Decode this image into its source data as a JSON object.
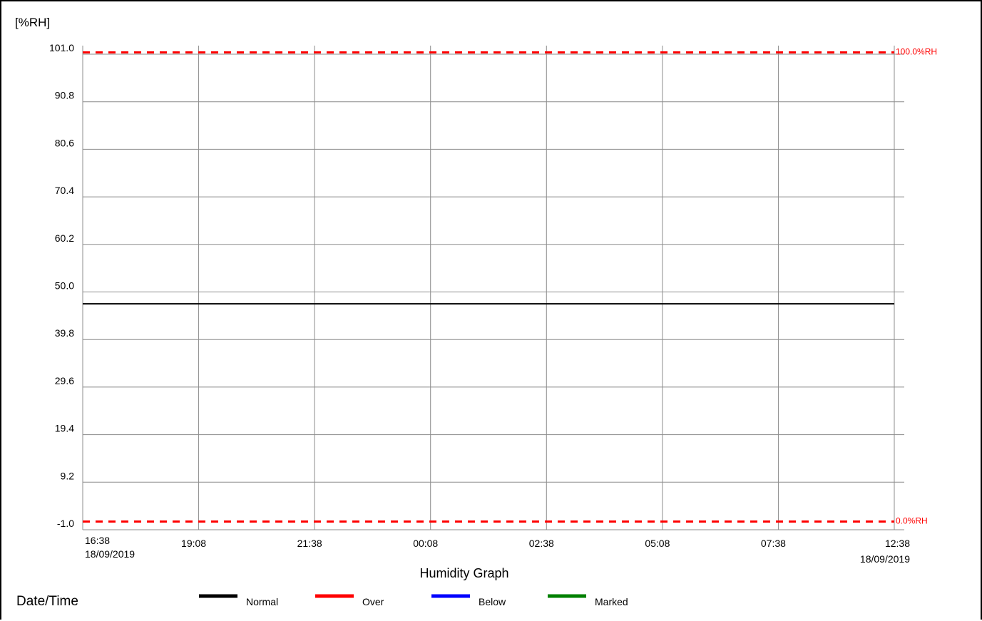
{
  "chart_data": {
    "type": "line",
    "title": "Humidity Graph",
    "ylabel": "[%RH]",
    "xlabel": "Date/Time",
    "ylim": [
      -1.0,
      101.0
    ],
    "y_ticks": [
      "101.0",
      "90.8",
      "80.6",
      "70.4",
      "60.2",
      "50.0",
      "39.8",
      "29.6",
      "19.4",
      "9.2",
      "-1.0"
    ],
    "x_ticks": [
      {
        "time": "16:38",
        "date": "18/09/2019"
      },
      {
        "time": "19:08",
        "date": ""
      },
      {
        "time": "21:38",
        "date": ""
      },
      {
        "time": "00:08",
        "date": ""
      },
      {
        "time": "02:38",
        "date": ""
      },
      {
        "time": "05:08",
        "date": ""
      },
      {
        "time": "07:38",
        "date": ""
      },
      {
        "time": "12:38",
        "date": "18/09/2019"
      }
    ],
    "grid": true,
    "limits": [
      {
        "label": "100.0%RH",
        "value": 100.0,
        "color": "#ff0000",
        "style": "dashed"
      },
      {
        "label": "0.0%RH",
        "value": 0.0,
        "color": "#ff0000",
        "style": "dashed"
      }
    ],
    "series": [
      {
        "name": "Normal",
        "color": "#000000",
        "x": [
          "16:38",
          "12:38"
        ],
        "values": [
          46.7,
          46.7
        ]
      }
    ],
    "legend": {
      "placement": "bottom",
      "items": [
        {
          "name": "Normal",
          "color": "#000000"
        },
        {
          "name": "Over",
          "color": "#ff0000"
        },
        {
          "name": "Below",
          "color": "#0000ff"
        },
        {
          "name": "Marked",
          "color": "#008000"
        }
      ]
    }
  }
}
